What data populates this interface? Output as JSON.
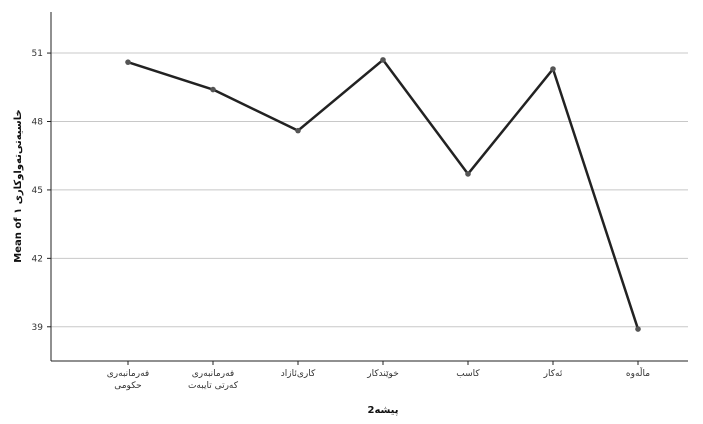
{
  "chart_data": {
    "type": "line",
    "title": "",
    "xlabel": "پیشە2",
    "ylabel": "Mean of خاسیەتی‌تەواوکاری ١",
    "categories": [
      [
        "فەرمانبەری",
        "حکومی"
      ],
      [
        "فەرمانبەری",
        "کەرتی تایبەت"
      ],
      [
        "کاری‌ئازاد"
      ],
      [
        "خوێندکار"
      ],
      [
        "کاسب"
      ],
      [
        "ئەکار"
      ],
      [
        "ماڵەوە"
      ]
    ],
    "y_ticks": [
      39,
      42,
      45,
      48,
      51
    ],
    "ylim": [
      37.5,
      52.8
    ],
    "grid": true,
    "series": [
      {
        "values": [
          50.6,
          49.4,
          47.6,
          50.7,
          45.7,
          50.3,
          38.9
        ]
      }
    ],
    "colors": {
      "line": "#222222",
      "point": "#555555",
      "grid": "#c8c8c8",
      "axis": "#222222"
    }
  }
}
